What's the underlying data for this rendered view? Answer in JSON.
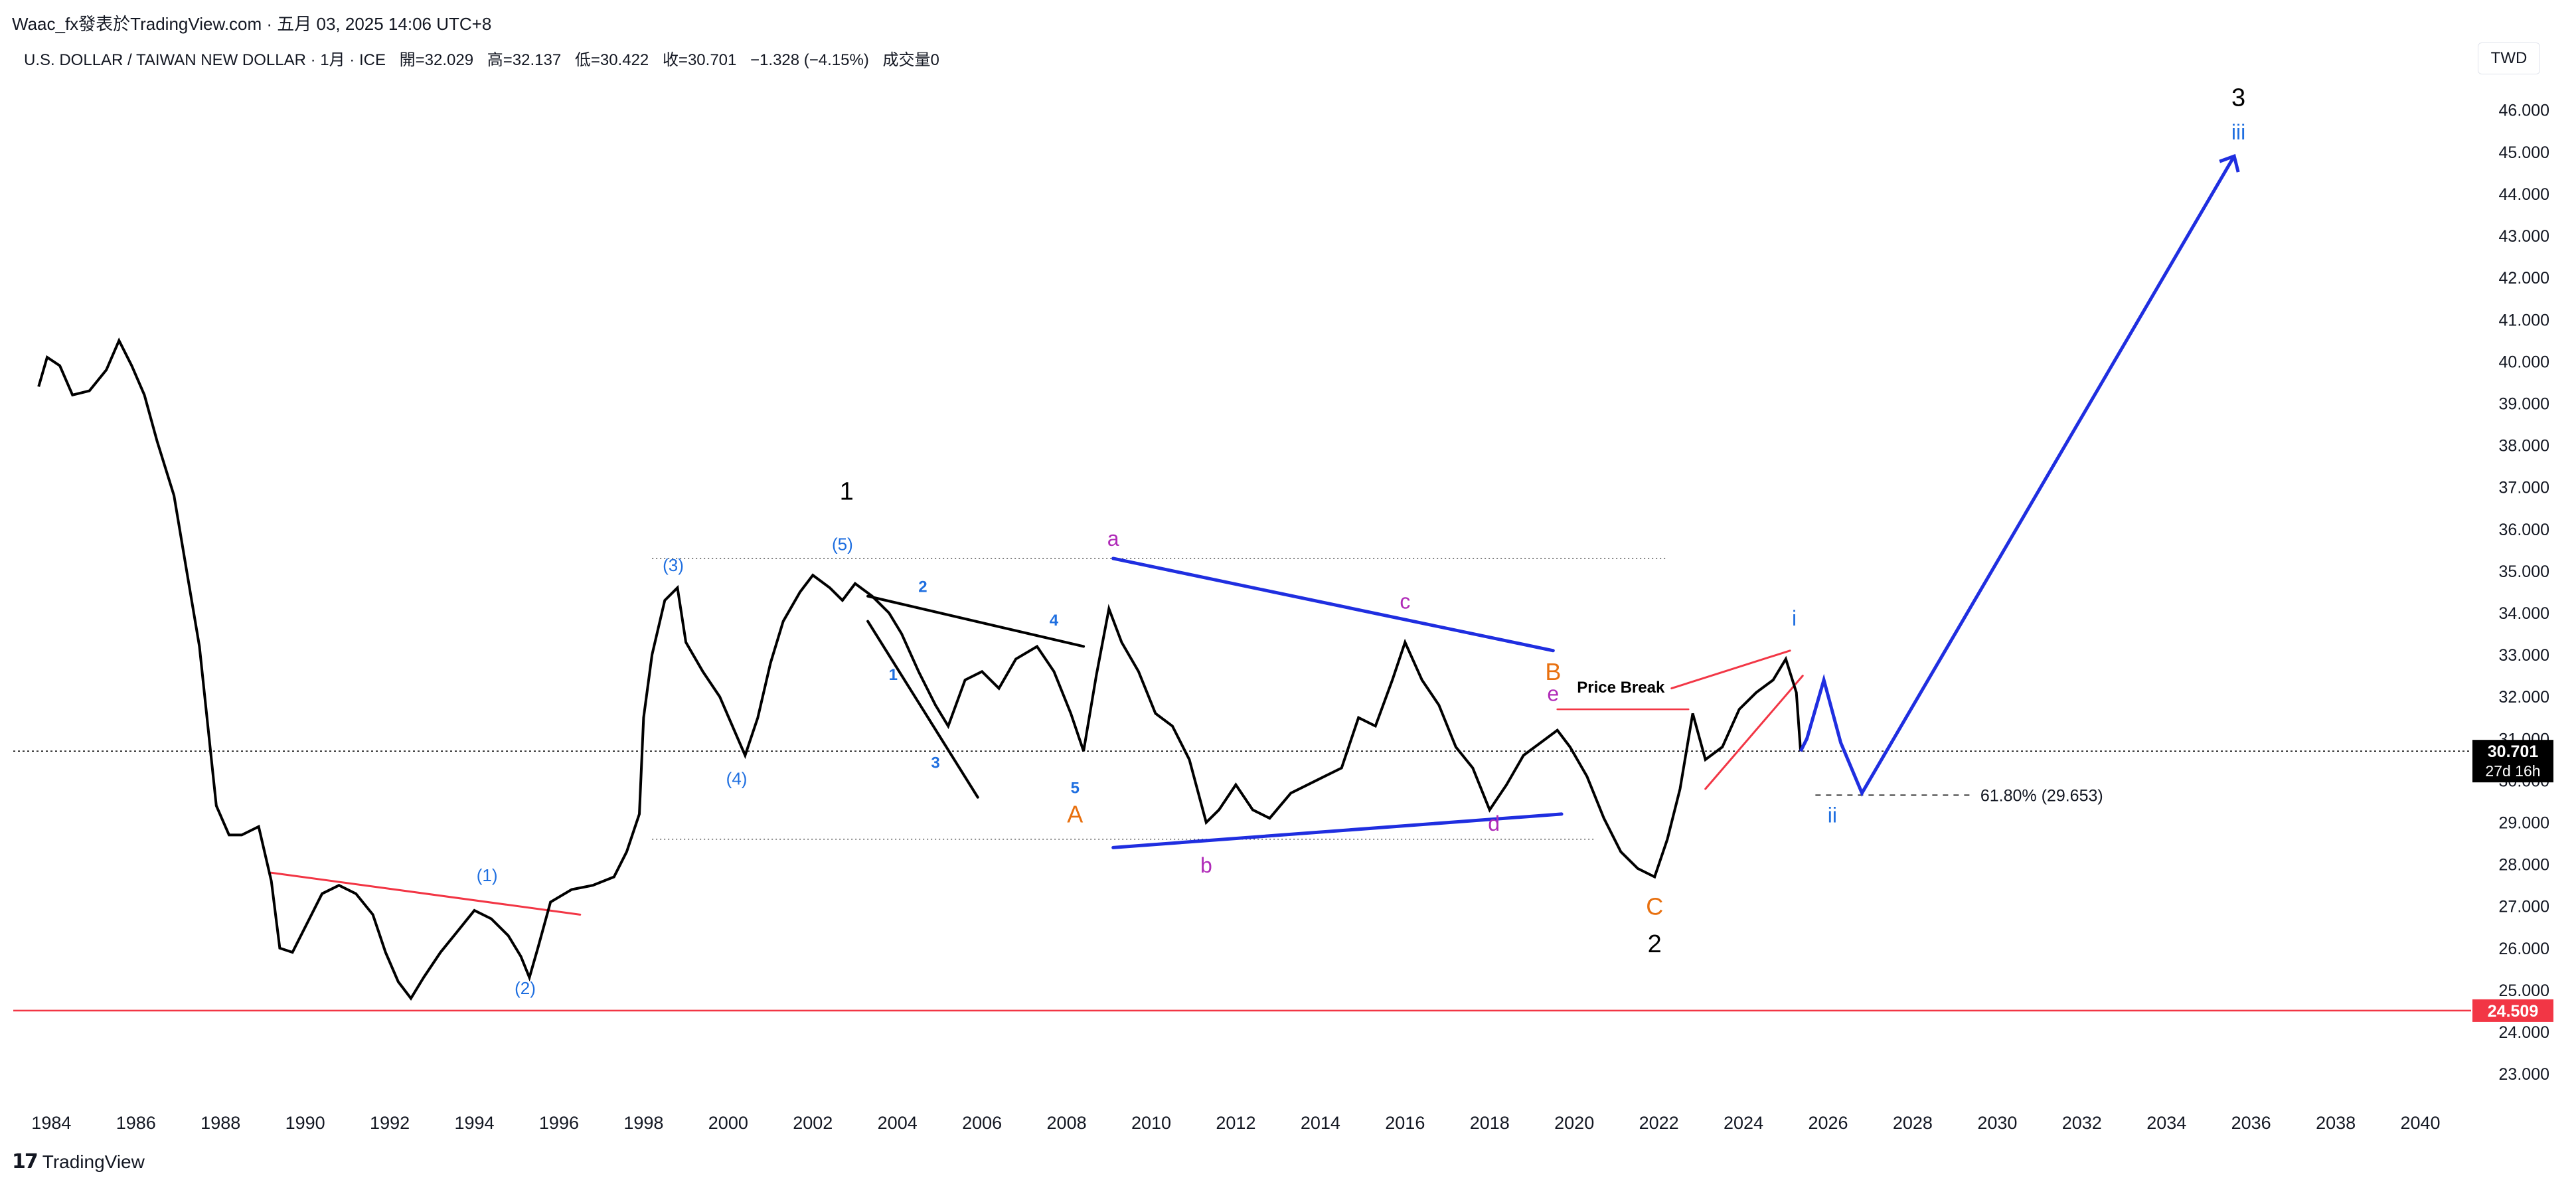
{
  "header": {
    "publisher": "Waac_fx發表於TradingView.com · 五月 03, 2025 14:06 UTC+8"
  },
  "legend": {
    "symbol": "U.S. DOLLAR / TAIWAN NEW DOLLAR · 1月 · ICE",
    "open": "開=32.029",
    "high": "高=32.137",
    "low": "低=30.422",
    "close": "收=30.701",
    "change": "−1.328 (−4.15%)",
    "volume": "成交量0"
  },
  "currency_label": "TWD",
  "footer": {
    "brand": "TradingView",
    "logo_mark": "17"
  },
  "chart_data": {
    "type": "line",
    "y_axis_ticks": [
      "23.000",
      "24.000",
      "25.000",
      "26.000",
      "27.000",
      "28.000",
      "29.000",
      "30.000",
      "31.000",
      "32.000",
      "33.000",
      "34.000",
      "35.000",
      "36.000",
      "37.000",
      "38.000",
      "39.000",
      "40.000",
      "41.000",
      "42.000",
      "43.000",
      "44.000",
      "45.000",
      "46.000"
    ],
    "x_axis_ticks": [
      "1984",
      "1986",
      "1988",
      "1990",
      "1992",
      "1994",
      "1996",
      "1998",
      "2000",
      "2002",
      "2004",
      "2006",
      "2008",
      "2010",
      "2012",
      "2014",
      "2016",
      "2018",
      "2020",
      "2022",
      "2024",
      "2026",
      "2028",
      "2030",
      "2032",
      "2034",
      "2036",
      "2038",
      "2040"
    ],
    "ylim": [
      22.4,
      47.2
    ],
    "xlim": [
      1983.1,
      2041.2
    ],
    "last_price": {
      "value": 30.701,
      "label": "30.701",
      "countdown": "27d 16h",
      "color": "#000000"
    },
    "support_line": {
      "value": 24.509,
      "label": "24.509",
      "color": "#f23645"
    },
    "price_series": [
      [
        1983.7,
        39.4
      ],
      [
        1983.9,
        40.1
      ],
      [
        1984.2,
        39.9
      ],
      [
        1984.5,
        39.2
      ],
      [
        1984.9,
        39.3
      ],
      [
        1985.3,
        39.8
      ],
      [
        1985.6,
        40.5
      ],
      [
        1985.9,
        39.9
      ],
      [
        1986.2,
        39.2
      ],
      [
        1986.5,
        38.1
      ],
      [
        1986.9,
        36.8
      ],
      [
        1987.2,
        35.0
      ],
      [
        1987.5,
        33.2
      ],
      [
        1987.7,
        31.3
      ],
      [
        1987.9,
        29.4
      ],
      [
        1988.2,
        28.7
      ],
      [
        1988.5,
        28.7
      ],
      [
        1988.9,
        28.9
      ],
      [
        1989.2,
        27.6
      ],
      [
        1989.4,
        26.0
      ],
      [
        1989.7,
        25.9
      ],
      [
        1990.1,
        26.7
      ],
      [
        1990.4,
        27.3
      ],
      [
        1990.8,
        27.5
      ],
      [
        1991.2,
        27.3
      ],
      [
        1991.6,
        26.8
      ],
      [
        1991.9,
        25.9
      ],
      [
        1992.2,
        25.2
      ],
      [
        1992.5,
        24.8
      ],
      [
        1992.8,
        25.3
      ],
      [
        1993.2,
        25.9
      ],
      [
        1993.6,
        26.4
      ],
      [
        1994.0,
        26.9
      ],
      [
        1994.4,
        26.7
      ],
      [
        1994.8,
        26.3
      ],
      [
        1995.1,
        25.8
      ],
      [
        1995.3,
        25.3
      ],
      [
        1995.5,
        26.0
      ],
      [
        1995.8,
        27.1
      ],
      [
        1996.3,
        27.4
      ],
      [
        1996.8,
        27.5
      ],
      [
        1997.3,
        27.7
      ],
      [
        1997.6,
        28.3
      ],
      [
        1997.9,
        29.2
      ],
      [
        1998.0,
        31.5
      ],
      [
        1998.2,
        33.0
      ],
      [
        1998.5,
        34.3
      ],
      [
        1998.8,
        34.6
      ],
      [
        1999.0,
        33.3
      ],
      [
        1999.4,
        32.6
      ],
      [
        1999.8,
        32.0
      ],
      [
        2000.1,
        31.3
      ],
      [
        2000.4,
        30.6
      ],
      [
        2000.7,
        31.5
      ],
      [
        2001.0,
        32.8
      ],
      [
        2001.3,
        33.8
      ],
      [
        2001.7,
        34.5
      ],
      [
        2002.0,
        34.9
      ],
      [
        2002.4,
        34.6
      ],
      [
        2002.7,
        34.3
      ],
      [
        2003.0,
        34.7
      ],
      [
        2003.4,
        34.4
      ],
      [
        2003.8,
        34.0
      ],
      [
        2004.1,
        33.5
      ],
      [
        2004.5,
        32.6
      ],
      [
        2004.9,
        31.8
      ],
      [
        2005.2,
        31.3
      ],
      [
        2005.6,
        32.4
      ],
      [
        2006.0,
        32.6
      ],
      [
        2006.4,
        32.2
      ],
      [
        2006.8,
        32.9
      ],
      [
        2007.3,
        33.2
      ],
      [
        2007.7,
        32.6
      ],
      [
        2008.1,
        31.6
      ],
      [
        2008.4,
        30.7
      ],
      [
        2008.7,
        32.5
      ],
      [
        2009.0,
        34.1
      ],
      [
        2009.3,
        33.3
      ],
      [
        2009.7,
        32.6
      ],
      [
        2010.1,
        31.6
      ],
      [
        2010.5,
        31.3
      ],
      [
        2010.9,
        30.5
      ],
      [
        2011.3,
        29.0
      ],
      [
        2011.6,
        29.3
      ],
      [
        2012.0,
        29.9
      ],
      [
        2012.4,
        29.3
      ],
      [
        2012.8,
        29.1
      ],
      [
        2013.3,
        29.7
      ],
      [
        2013.7,
        29.9
      ],
      [
        2014.1,
        30.1
      ],
      [
        2014.5,
        30.3
      ],
      [
        2014.9,
        31.5
      ],
      [
        2015.3,
        31.3
      ],
      [
        2015.7,
        32.4
      ],
      [
        2016.0,
        33.3
      ],
      [
        2016.4,
        32.4
      ],
      [
        2016.8,
        31.8
      ],
      [
        2017.2,
        30.8
      ],
      [
        2017.6,
        30.3
      ],
      [
        2018.0,
        29.3
      ],
      [
        2018.4,
        29.9
      ],
      [
        2018.8,
        30.6
      ],
      [
        2019.2,
        30.9
      ],
      [
        2019.6,
        31.2
      ],
      [
        2019.9,
        30.8
      ],
      [
        2020.3,
        30.1
      ],
      [
        2020.7,
        29.1
      ],
      [
        2021.1,
        28.3
      ],
      [
        2021.5,
        27.9
      ],
      [
        2021.9,
        27.7
      ],
      [
        2022.2,
        28.6
      ],
      [
        2022.5,
        29.8
      ],
      [
        2022.8,
        31.6
      ],
      [
        2023.1,
        30.5
      ],
      [
        2023.5,
        30.8
      ],
      [
        2023.9,
        31.7
      ],
      [
        2024.3,
        32.1
      ],
      [
        2024.7,
        32.4
      ],
      [
        2025.0,
        32.9
      ],
      [
        2025.25,
        32.1
      ],
      [
        2025.35,
        30.7
      ]
    ],
    "projection_path": [
      [
        2025.35,
        30.7
      ],
      [
        2025.5,
        31.0
      ],
      [
        2025.9,
        32.4
      ],
      [
        2026.3,
        30.9
      ],
      [
        2026.8,
        29.7
      ],
      [
        2035.6,
        44.9
      ]
    ],
    "labels": {
      "wave_1": "1",
      "wave_2": "2",
      "wave_3": "3",
      "wave_A": "A",
      "wave_B": "B",
      "wave_C": "C",
      "sub_1": "(1)",
      "sub_2": "(2)",
      "sub_3": "(3)",
      "sub_4": "(4)",
      "sub_5": "(5)",
      "minor_1": "1",
      "minor_2": "2",
      "minor_3": "3",
      "minor_4": "4",
      "minor_5": "5",
      "tri_a": "a",
      "tri_b": "b",
      "tri_c": "c",
      "tri_d": "d",
      "tri_e": "e",
      "proj_i": "i",
      "proj_ii": "ii",
      "proj_iii": "iii",
      "price_break": "Price Break",
      "fib": "61.80% (29.653)"
    }
  }
}
